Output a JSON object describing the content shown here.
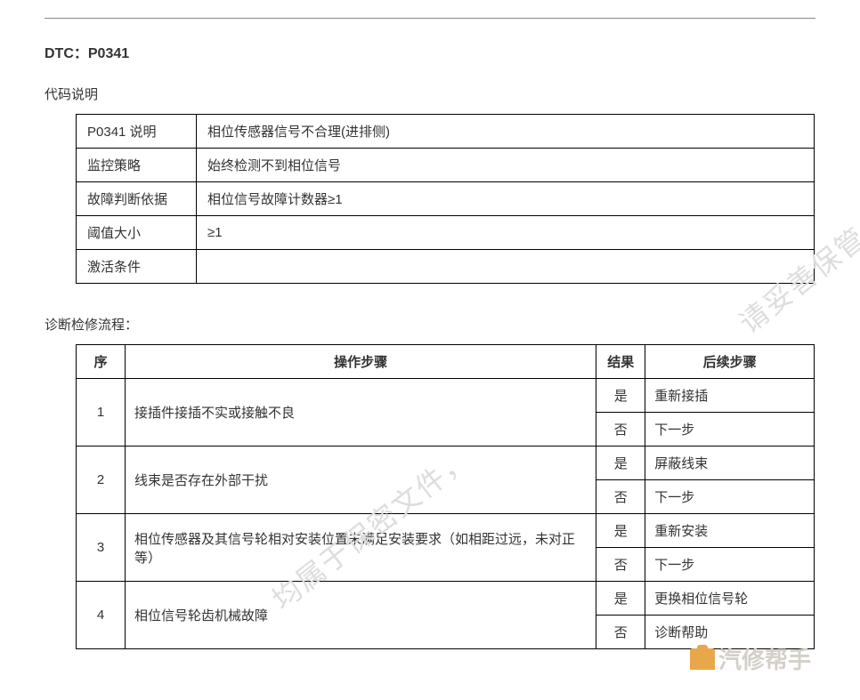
{
  "dtc_title": "DTC：P0341",
  "desc_heading": "代码说明",
  "desc_rows": [
    {
      "label": "P0341 说明",
      "value": "相位传感器信号不合理(进排侧)"
    },
    {
      "label": "监控策略",
      "value": "始终检测不到相位信号"
    },
    {
      "label": "故障判断依据",
      "value": "相位信号故障计数器≥1"
    },
    {
      "label": "阈值大小",
      "value": "≥1"
    },
    {
      "label": "激活条件",
      "value": ""
    }
  ],
  "flow_heading": "诊断检修流程：",
  "flow_headers": {
    "seq": "序",
    "step": "操作步骤",
    "result": "结果",
    "next": "后续步骤"
  },
  "flow_rows": [
    {
      "seq": "1",
      "step": "接插件接插不实或接触不良",
      "yes": "是",
      "yes_next": "重新接插",
      "no": "否",
      "no_next": "下一步"
    },
    {
      "seq": "2",
      "step": "线束是否存在外部干扰",
      "yes": "是",
      "yes_next": "屏蔽线束",
      "no": "否",
      "no_next": "下一步"
    },
    {
      "seq": "3",
      "step": "相位传感器及其信号轮相对安装位置未满足安装要求（如相距过远，未对正等）",
      "yes": "是",
      "yes_next": "重新安装",
      "no": "否",
      "no_next": "下一步"
    },
    {
      "seq": "4",
      "step": "相位信号轮齿机械故障",
      "yes": "是",
      "yes_next": "更换相位信号轮",
      "no": "否",
      "no_next": "诊断帮助"
    }
  ],
  "watermark_text_1": "请妥善保管。",
  "watermark_text_2": "均属于保密文件，",
  "logo_text": "汽修帮手"
}
